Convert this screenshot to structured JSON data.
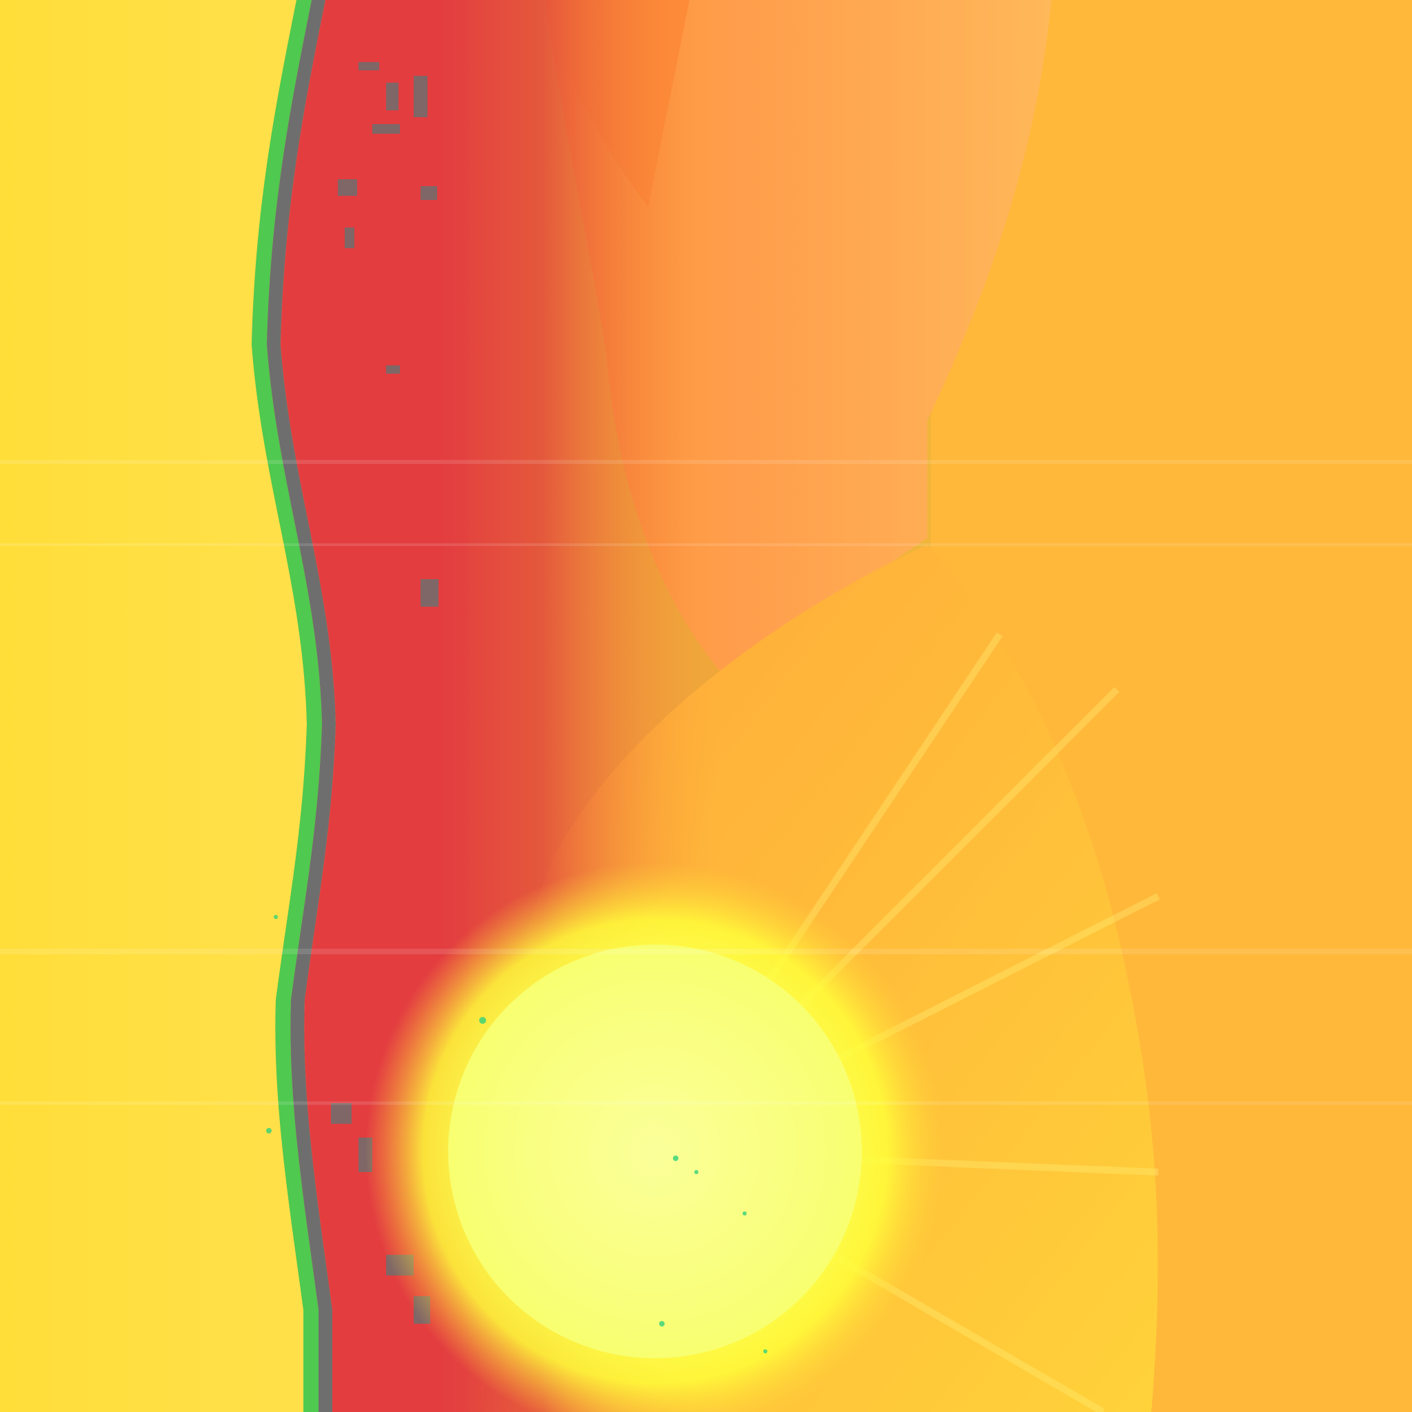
{
  "artwork": {
    "colors": {
      "background_orange": "#ffb83a",
      "left_yellow": "#ffdf3d",
      "green_edge": "#4fc94f",
      "gray_edge": "#6e6e6e",
      "red_band": "#e33d40",
      "upper_lens": "#ffa65a",
      "upper_lens_edge": "#ff7a2e",
      "lower_lens": "#ffc23a",
      "sun_core": "#fbff72",
      "sun_glow": "#ffff3a",
      "speckle": "#33d17a"
    },
    "elements": [
      "left-yellow-field",
      "wavy-green-edge",
      "wavy-gray-edge",
      "red-vertical-band",
      "gradient-transition",
      "upper-orange-lens",
      "lower-golden-lens",
      "glowing-sun"
    ]
  }
}
